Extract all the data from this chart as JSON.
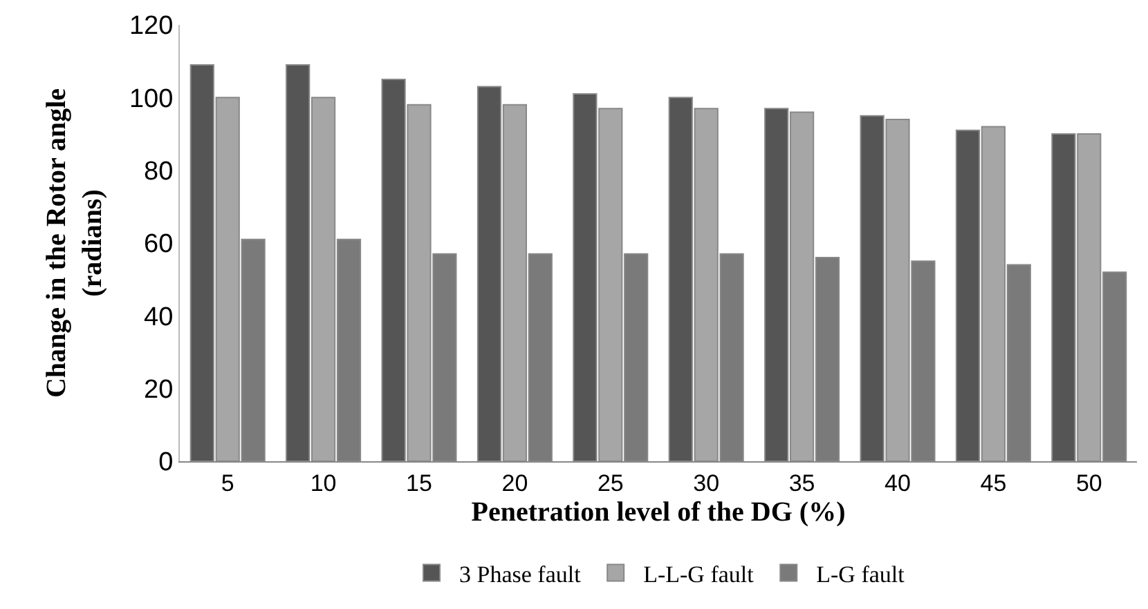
{
  "chart_data": {
    "type": "bar",
    "xlabel": "Penetration level of the DG (%)",
    "ylabel": "Change in the Rotor angle\n(radians)",
    "categories": [
      "5",
      "10",
      "15",
      "20",
      "25",
      "30",
      "35",
      "40",
      "45",
      "50"
    ],
    "series": [
      {
        "name": "3 Phase fault",
        "color": "#555555",
        "values": [
          109,
          109,
          105,
          103,
          101,
          100,
          97,
          95,
          91,
          90
        ]
      },
      {
        "name": "L-L-G fault",
        "color": "#a6a6a6",
        "values": [
          100,
          100,
          98,
          98,
          97,
          97,
          96,
          94,
          92,
          90
        ]
      },
      {
        "name": "L-G fault",
        "color": "#7a7a7a",
        "values": [
          61,
          61,
          57,
          57,
          57,
          57,
          56,
          55,
          54,
          52
        ]
      }
    ],
    "ylim": [
      0,
      120
    ],
    "yticks": [
      0,
      20,
      40,
      60,
      80,
      100,
      120
    ],
    "legend": "bottom"
  }
}
